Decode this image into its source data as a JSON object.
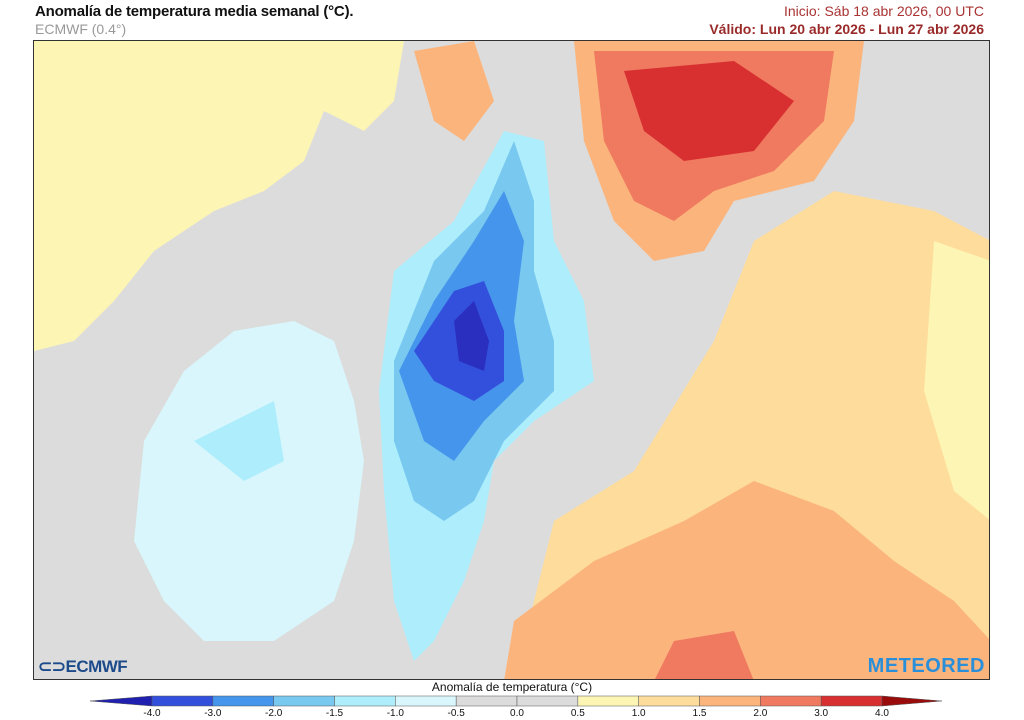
{
  "header": {
    "title": "Anomalía de temperatura media semanal (°C).",
    "subtitle": "ECMWF (0.4°)",
    "init": "Inicio: Sáb 18 abr 2026, 00 UTC",
    "valid": "Válido: Lun 20 abr 2026 - Lun 27 abr 2026"
  },
  "map": {
    "logo_left": "ECMWF",
    "logo_right": "METEORED"
  },
  "legend": {
    "title": "Anomalía de temperatura (°C)",
    "ticks": [
      "-4.0",
      "-3.0",
      "-2.0",
      "-1.5",
      "-1.0",
      "-0.5",
      "0.0",
      "0.5",
      "1.0",
      "1.5",
      "2.0",
      "3.0",
      "4.0"
    ],
    "under_color": "#2020b0",
    "over_color": "#9a0c0c",
    "colors": [
      "#3350dc",
      "#4595ec",
      "#78c8f0",
      "#aeeefc",
      "#d8f6fb",
      "#dcdcdc",
      "#dcdcdc",
      "#fdf5b4",
      "#fddc9c",
      "#fbb57c",
      "#f07a60",
      "#d83030"
    ]
  }
}
